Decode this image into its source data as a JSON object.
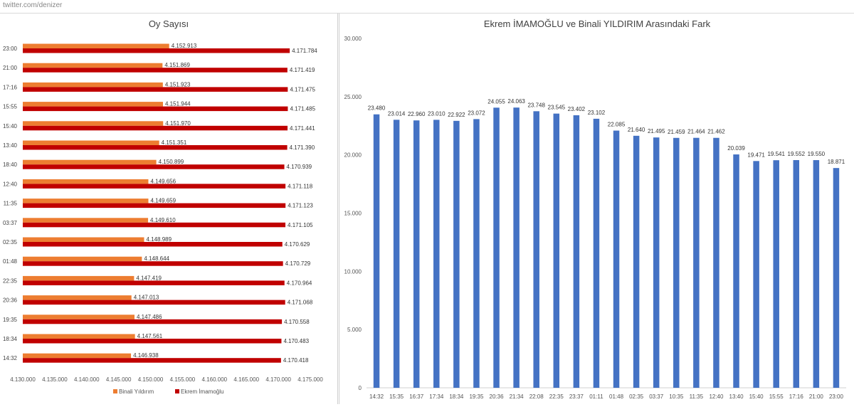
{
  "source_label": "twitter.com/denizer",
  "chart_data": [
    {
      "type": "bar",
      "orientation": "horizontal",
      "title": "Oy Sayısı",
      "categories": [
        "23:00",
        "21:00",
        "17:16",
        "15:55",
        "15:40",
        "13:40",
        "18:40",
        "12:40",
        "11:35",
        "03:37",
        "02:35",
        "01:48",
        "22:35",
        "20:36",
        "19:35",
        "18:34",
        "14:32"
      ],
      "series": [
        {
          "name": "Binali Yıldırım",
          "color": "#ED7D31",
          "values": [
            4152913,
            4151869,
            4151923,
            4151944,
            4151970,
            4151351,
            4150899,
            4149656,
            4149659,
            4149610,
            4148989,
            4148644,
            4147419,
            4147013,
            4147486,
            4147561,
            4146938
          ],
          "labels": [
            "4.152.913",
            "4.151.869",
            "4.151.923",
            "4.151.944",
            "4.151.970",
            "4.151.351",
            "4.150.899",
            "4.149.656",
            "4.149.659",
            "4.149.610",
            "4.148.989",
            "4.148.644",
            "4.147.419",
            "4.147.013",
            "4.147.486",
            "4.147.561",
            "4.146.938"
          ]
        },
        {
          "name": "Ekrem İmamoğlu",
          "color": "#C00000",
          "values": [
            4171784,
            4171419,
            4171475,
            4171485,
            4171441,
            4171390,
            4170939,
            4171118,
            4171123,
            4171105,
            4170629,
            4170729,
            4170964,
            4171068,
            4170558,
            4170483,
            4170418
          ],
          "labels": [
            "4.171.784",
            "4.171.419",
            "4.171.475",
            "4.171.485",
            "4.171.441",
            "4.171.390",
            "4.170.939",
            "4.171.118",
            "4.171.123",
            "4.171.105",
            "4.170.629",
            "4.170.729",
            "4.170.964",
            "4.171.068",
            "4.170.558",
            "4.170.483",
            "4.170.418"
          ]
        }
      ],
      "xlim": [
        4130000,
        4175000
      ],
      "xticks": [
        4130000,
        4135000,
        4140000,
        4145000,
        4150000,
        4155000,
        4160000,
        4165000,
        4170000,
        4175000
      ],
      "xtick_labels": [
        "4.130.000",
        "4.135.000",
        "4.140.000",
        "4.145.000",
        "4.150.000",
        "4.155.000",
        "4.160.000",
        "4.165.000",
        "4.170.000",
        "4.175.000"
      ],
      "legend_position": "bottom",
      "grid": false
    },
    {
      "type": "bar",
      "orientation": "vertical",
      "title": "Ekrem İMAMOĞLU ve Binali YILDIRIM Arasındaki Fark",
      "categories": [
        "14:32",
        "15:35",
        "16:37",
        "17:34",
        "18:34",
        "19:35",
        "20:36",
        "21:34",
        "22:08",
        "22:35",
        "23:37",
        "01:11",
        "01:48",
        "02:35",
        "03:37",
        "10:35",
        "11:35",
        "12:40",
        "13:40",
        "15:40",
        "15:55",
        "17:16",
        "21:00",
        "23:00"
      ],
      "values": [
        23480,
        23014,
        22960,
        23010,
        22922,
        23072,
        24055,
        24063,
        23748,
        23545,
        23402,
        23102,
        22085,
        21640,
        21495,
        21459,
        21464,
        21462,
        20039,
        19471,
        19541,
        19552,
        19550,
        18871
      ],
      "value_labels": [
        "23.480",
        "23.014",
        "22.960",
        "23.010",
        "22.922",
        "23.072",
        "24.055",
        "24.063",
        "23.748",
        "23.545",
        "23.402",
        "23.102",
        "22.085",
        "21.640",
        "21.495",
        "21.459",
        "21.464",
        "21.462",
        "20.039",
        "19.471",
        "19.541",
        "19.552",
        "19.550",
        "18.871"
      ],
      "color": "#4472C4",
      "ylim": [
        0,
        30000
      ],
      "yticks": [
        0,
        5000,
        10000,
        15000,
        20000,
        25000,
        30000
      ],
      "ytick_labels": [
        "0",
        "5.000",
        "10.000",
        "15.000",
        "20.000",
        "25.000",
        "30.000"
      ],
      "grid": false
    }
  ]
}
